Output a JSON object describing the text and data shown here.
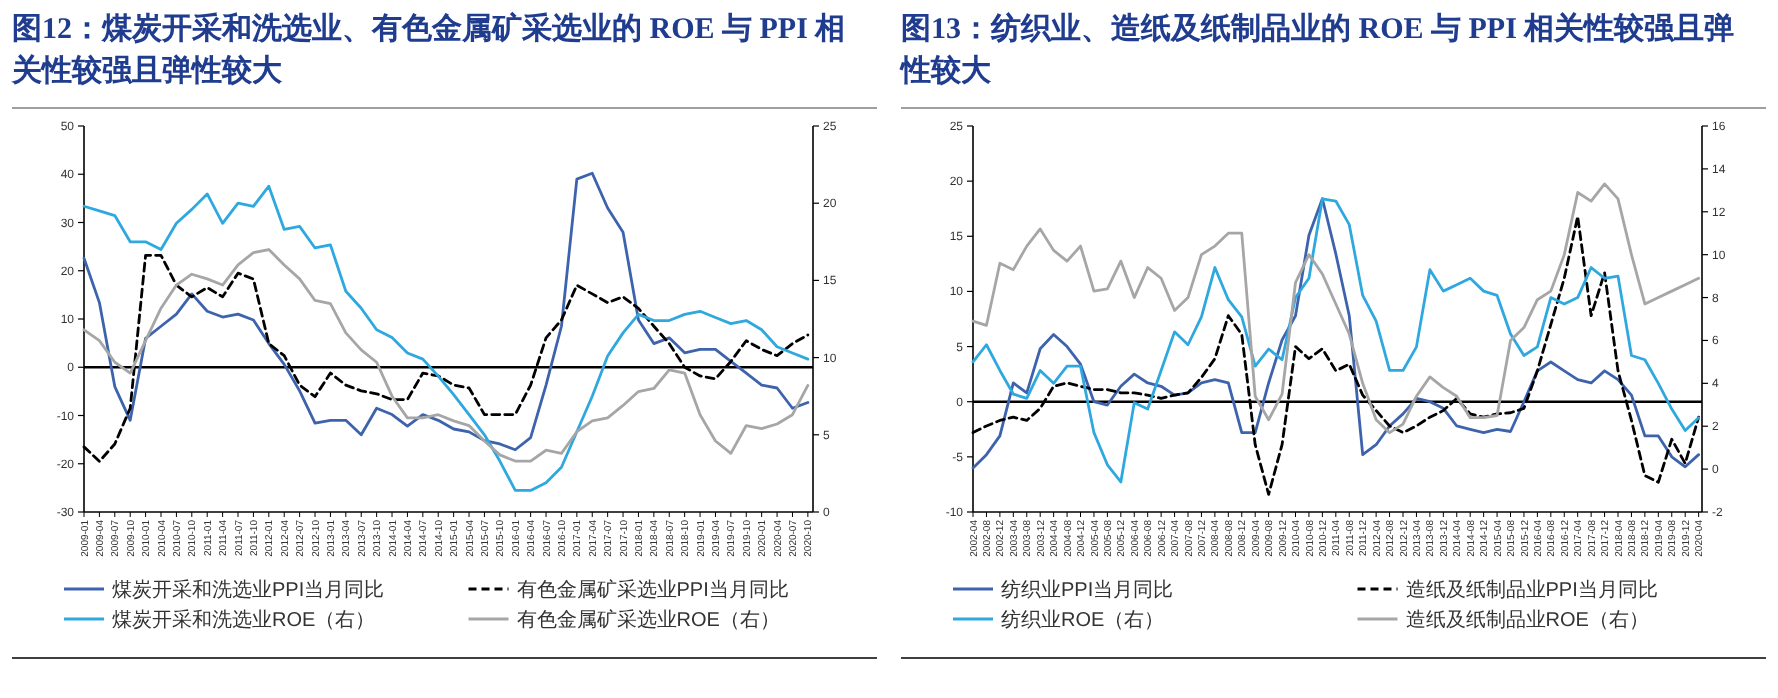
{
  "chart_data": [
    {
      "type": "line",
      "title": "图12：煤炭开采和洗选业、有色金属矿采选业的 ROE 与 PPI 相关性较强且弹性较大",
      "legend": "bottom",
      "x": [
        "2009-01",
        "2009-04",
        "2009-07",
        "2009-10",
        "2010-01",
        "2010-04",
        "2010-07",
        "2010-10",
        "2011-01",
        "2011-04",
        "2011-07",
        "2011-10",
        "2012-01",
        "2012-04",
        "2012-07",
        "2012-10",
        "2013-01",
        "2013-04",
        "2013-07",
        "2013-10",
        "2014-01",
        "2014-04",
        "2014-07",
        "2014-10",
        "2015-01",
        "2015-04",
        "2015-07",
        "2015-10",
        "2016-01",
        "2016-04",
        "2016-07",
        "2016-10",
        "2017-01",
        "2017-04",
        "2017-07",
        "2017-10",
        "2018-01",
        "2018-04",
        "2018-07",
        "2018-10",
        "2019-01",
        "2019-04",
        "2019-07",
        "2019-10",
        "2020-01",
        "2020-04",
        "2020-07",
        "2020-10"
      ],
      "xlim": [
        "2009-01",
        "2020-11"
      ],
      "xticks": [
        "2009-01",
        "2009-04",
        "2009-07",
        "2009-10",
        "2010-01",
        "2010-04",
        "2010-07",
        "2010-10",
        "2011-01",
        "2011-04",
        "2011-07",
        "2011-10",
        "2012-01",
        "2012-04",
        "2012-07",
        "2012-10",
        "2013-01",
        "2013-04",
        "2013-07",
        "2013-10",
        "2014-01",
        "2014-04",
        "2014-07",
        "2014-10",
        "2015-01",
        "2015-04",
        "2015-07",
        "2015-10",
        "2016-01",
        "2016-04",
        "2016-07",
        "2016-10",
        "2017-01",
        "2017-04",
        "2017-07",
        "2017-10",
        "2018-01",
        "2018-04",
        "2018-07",
        "2018-10",
        "2019-01",
        "2019-04",
        "2019-07",
        "2019-10",
        "2020-01",
        "2020-04",
        "2020-07",
        "2020-10"
      ],
      "ylim": [
        -30,
        50
      ],
      "yticks": [
        -30,
        -20,
        -10,
        0,
        10,
        20,
        30,
        40,
        50
      ],
      "y2lim": [
        0,
        25
      ],
      "y2ticks": [
        0,
        5,
        10,
        15,
        20,
        25
      ],
      "ref_lines": [
        {
          "axis": "y",
          "value": 0,
          "color": "#000000"
        }
      ],
      "series": [
        {
          "name": "煤炭开采和洗选业PPI当月同比",
          "color": "#3d63ad",
          "line_style": "solid",
          "values": [
            22.6,
            13.4,
            -4,
            -11,
            6,
            8.5,
            11,
            15.2,
            11.6,
            10.4,
            11,
            9.8,
            4.9,
            0.6,
            -4.9,
            -11.6,
            -11,
            -11,
            -14,
            -8.5,
            -9.8,
            -12.2,
            -9.8,
            -11,
            -12.8,
            -13.4,
            -15.2,
            -15.9,
            -17.1,
            -14.6,
            -3.7,
            8.5,
            39,
            40.2,
            33,
            28,
            9.8,
            4.9,
            6.1,
            3,
            3.7,
            3.7,
            1.2,
            -1.2,
            -3.7,
            -4.3,
            -8.5,
            -7.3
          ]
        },
        {
          "name": "有色金属矿采选业PPI当月同比",
          "color": "#000000",
          "line_style": "dashed",
          "values": [
            -16.5,
            -19.5,
            -15.9,
            -8.5,
            23.2,
            23.2,
            17,
            14.6,
            16.5,
            14.6,
            19.5,
            18.3,
            4.9,
            2.4,
            -3.7,
            -6.1,
            -1.2,
            -3.7,
            -4.9,
            -5.5,
            -6.7,
            -6.7,
            -1.2,
            -1.8,
            -3.7,
            -4.3,
            -9.8,
            -9.8,
            -9.8,
            -3.7,
            6.1,
            9.8,
            17,
            15.2,
            13.4,
            14.6,
            12.2,
            8.5,
            4.9,
            0,
            -1.8,
            -2.4,
            1.2,
            5.5,
            3.7,
            2.4,
            4.9,
            6.7
          ]
        },
        {
          "name": "煤炭开采和洗选业ROE（右）",
          "color": "#2ea8df",
          "line_style": "solid",
          "axis": "y2",
          "values": [
            19.8,
            19.5,
            19.2,
            17.5,
            17.5,
            17,
            18.7,
            19.6,
            20.6,
            18.7,
            20,
            19.8,
            21.1,
            18.3,
            18.5,
            17.1,
            17.3,
            14.3,
            13.2,
            11.8,
            11.3,
            10.3,
            9.9,
            8.8,
            7.6,
            6.3,
            5,
            3.3,
            1.4,
            1.4,
            1.9,
            2.9,
            5.2,
            7.5,
            10.1,
            11.6,
            12.8,
            12.4,
            12.4,
            12.8,
            13,
            12.6,
            12.2,
            12.4,
            11.8,
            10.7,
            10.3,
            9.9
          ]
        },
        {
          "name": "有色金属矿采选业ROE（右）",
          "color": "#a6a6a6",
          "line_style": "solid",
          "axis": "y2",
          "values": [
            11.8,
            11.1,
            9.7,
            9,
            11.1,
            13.2,
            14.7,
            15.4,
            15.1,
            14.7,
            16,
            16.8,
            17,
            16,
            15.1,
            13.7,
            13.5,
            11.6,
            10.5,
            9.7,
            7.5,
            6.1,
            6.1,
            6.3,
            5.9,
            5.6,
            4.6,
            3.7,
            3.3,
            3.3,
            4,
            3.8,
            5.2,
            5.9,
            6.1,
            6.9,
            7.8,
            8,
            9.2,
            9,
            6.3,
            4.6,
            3.8,
            5.6,
            5.4,
            5.7,
            6.3,
            8.2
          ]
        }
      ]
    },
    {
      "type": "line",
      "title": "图13：纺织业、造纸及纸制品业的 ROE 与 PPI 相关性较强且弹性较大",
      "legend": "bottom",
      "x": [
        "2002-04",
        "2002-08",
        "2002-12",
        "2003-04",
        "2003-08",
        "2003-12",
        "2004-04",
        "2004-08",
        "2004-12",
        "2005-04",
        "2005-08",
        "2005-12",
        "2006-04",
        "2006-08",
        "2006-12",
        "2007-04",
        "2007-08",
        "2007-12",
        "2008-04",
        "2008-08",
        "2008-12",
        "2009-04",
        "2009-08",
        "2009-12",
        "2010-04",
        "2010-08",
        "2010-12",
        "2011-04",
        "2011-08",
        "2011-12",
        "2012-04",
        "2012-08",
        "2012-12",
        "2013-04",
        "2013-08",
        "2013-12",
        "2014-04",
        "2014-08",
        "2014-12",
        "2015-04",
        "2015-08",
        "2015-12",
        "2016-04",
        "2016-08",
        "2016-12",
        "2017-04",
        "2017-08",
        "2017-12",
        "2018-04",
        "2018-08",
        "2018-12",
        "2019-04",
        "2019-08",
        "2019-12",
        "2020-04"
      ],
      "xlim": [
        "2002-04",
        "2020-05"
      ],
      "xticks": [
        "2002-04",
        "2002-08",
        "2002-12",
        "2003-04",
        "2003-08",
        "2003-12",
        "2004-04",
        "2004-08",
        "2004-12",
        "2005-04",
        "2005-08",
        "2005-12",
        "2006-04",
        "2006-08",
        "2006-12",
        "2007-04",
        "2007-08",
        "2007-12",
        "2008-04",
        "2008-08",
        "2008-12",
        "2009-04",
        "2009-08",
        "2009-12",
        "2010-04",
        "2010-08",
        "2010-12",
        "2011-04",
        "2011-08",
        "2011-12",
        "2012-04",
        "2012-08",
        "2012-12",
        "2013-04",
        "2013-08",
        "2013-12",
        "2014-04",
        "2014-08",
        "2014-12",
        "2015-04",
        "2015-08",
        "2015-12",
        "2016-04",
        "2016-08",
        "2016-12",
        "2017-04",
        "2017-08",
        "2017-12",
        "2018-04",
        "2018-08",
        "2018-12",
        "2019-04",
        "2019-08",
        "2019-12",
        "2020-04"
      ],
      "ylim": [
        -10,
        25
      ],
      "yticks": [
        -10,
        -5,
        0,
        5,
        10,
        15,
        20,
        25
      ],
      "y2lim": [
        -2,
        16
      ],
      "y2ticks": [
        -2,
        0,
        2,
        4,
        6,
        8,
        10,
        12,
        14,
        16
      ],
      "ref_lines": [
        {
          "axis": "y",
          "value": 0,
          "color": "#000000"
        }
      ],
      "series": [
        {
          "name": "纺织业PPI当月同比",
          "color": "#3d63ad",
          "line_style": "solid",
          "values": [
            -6,
            -4.8,
            -3.1,
            1.7,
            0.8,
            4.8,
            6.1,
            5,
            3.4,
            0,
            -0.3,
            1.4,
            2.5,
            1.7,
            1.4,
            0.6,
            0.8,
            1.7,
            2,
            1.7,
            -2.8,
            -2.8,
            1.7,
            5.6,
            7.8,
            15.1,
            18.4,
            13.4,
            7.8,
            -4.8,
            -3.9,
            -2.2,
            -1.1,
            0.3,
            0,
            -0.6,
            -2.2,
            -2.5,
            -2.8,
            -2.5,
            -2.7,
            0,
            2.8,
            3.6,
            2.8,
            2,
            1.7,
            2.8,
            2,
            0.6,
            -3.1,
            -3.1,
            -5,
            -5.9,
            -4.8
          ]
        },
        {
          "name": "造纸及纸制品业PPI当月同比",
          "color": "#000000",
          "line_style": "dashed",
          "values": [
            -2.8,
            -2.2,
            -1.7,
            -1.4,
            -1.7,
            -0.6,
            1.4,
            1.7,
            1.4,
            1.1,
            1.1,
            0.8,
            0.8,
            0.6,
            0.3,
            0.6,
            0.8,
            2.2,
            3.9,
            7.8,
            6.1,
            -3.9,
            -8.4,
            -3.9,
            5,
            3.9,
            4.8,
            2.8,
            3.4,
            0.6,
            -0.8,
            -2.2,
            -2.8,
            -2.2,
            -1.4,
            -0.8,
            0.3,
            -1.1,
            -1.4,
            -1.1,
            -1,
            -0.6,
            2.8,
            7,
            11.2,
            16.8,
            7.8,
            11.7,
            2.8,
            -1.7,
            -6.7,
            -7.3,
            -3.4,
            -5.6,
            -1.4
          ]
        },
        {
          "name": "纺织业ROE（右）",
          "color": "#2ea8df",
          "line_style": "solid",
          "axis": "y2",
          "values": [
            5,
            5.8,
            4.6,
            3.5,
            3.3,
            4.6,
            4,
            4.8,
            4.8,
            1.7,
            0.2,
            -0.6,
            3.1,
            2.8,
            4.6,
            6.4,
            5.8,
            7.1,
            9.4,
            7.9,
            7.1,
            4.8,
            5.6,
            5.1,
            8,
            8.9,
            12.6,
            12.5,
            11.4,
            8.1,
            6.9,
            4.6,
            4.6,
            5.7,
            9.3,
            8.3,
            8.6,
            8.9,
            8.3,
            8.1,
            6.3,
            5.3,
            5.7,
            8,
            7.7,
            8,
            9.4,
            8.9,
            9,
            5.3,
            5.1,
            4,
            2.8,
            1.8,
            2.4
          ]
        },
        {
          "name": "造纸及纸制品业ROE（右）",
          "color": "#a6a6a6",
          "line_style": "solid",
          "axis": "y2",
          "values": [
            6.9,
            6.7,
            9.6,
            9.3,
            10.4,
            11.2,
            10.2,
            9.7,
            10.4,
            8.3,
            8.4,
            9.7,
            8,
            9.4,
            8.9,
            7.4,
            8,
            10,
            10.4,
            11,
            11,
            3.4,
            2.3,
            3.5,
            8.7,
            10,
            9.1,
            7.7,
            6.3,
            4,
            2.3,
            1.7,
            2.1,
            3.4,
            4.3,
            3.8,
            3.4,
            2.4,
            2.4,
            2.5,
            6,
            6.6,
            7.9,
            8.3,
            10,
            12.9,
            12.5,
            13.3,
            12.6,
            10,
            7.7,
            8,
            8.3,
            8.6,
            8.9
          ]
        }
      ]
    }
  ]
}
